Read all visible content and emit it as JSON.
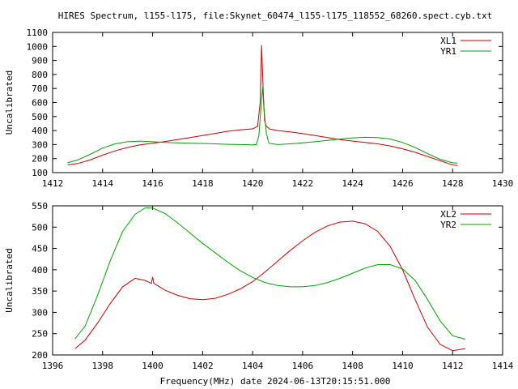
{
  "title": "HIRES Spectrum, l155-l175, file:Skynet_60474_l155-l175_118552_68260.spect.cyb.txt",
  "xlabel": "Frequency(MHz) date 2024-06-13T20:15:51.000",
  "colors": {
    "red": "#cc0000",
    "green": "#00a000"
  },
  "chart_data": [
    {
      "type": "line",
      "title": "HIRES Spectrum, l155-l175, file:Skynet_60474_l155-l175_118552_68260.spect.cyb.txt",
      "xlabel": "",
      "ylabel": "Uncalibrated",
      "xlim": [
        1412,
        1430
      ],
      "ylim": [
        100,
        1100
      ],
      "xticks": [
        1412,
        1414,
        1416,
        1418,
        1420,
        1422,
        1424,
        1426,
        1428,
        1430
      ],
      "yticks": [
        100,
        200,
        300,
        400,
        500,
        600,
        700,
        800,
        900,
        1000,
        1100
      ],
      "legend": "top-right",
      "series": [
        {
          "name": "XL1",
          "color": "#cc0000",
          "x": [
            1412.6,
            1413,
            1413.5,
            1414,
            1414.5,
            1415,
            1415.5,
            1416,
            1416.5,
            1417,
            1417.5,
            1418,
            1418.5,
            1419,
            1419.5,
            1420,
            1420.2,
            1420.3,
            1420.36,
            1420.42,
            1420.48,
            1420.55,
            1420.7,
            1421,
            1421.5,
            1422,
            1422.5,
            1423,
            1423.5,
            1424,
            1424.5,
            1425,
            1425.5,
            1426,
            1426.5,
            1427,
            1427.5,
            1428,
            1428.2
          ],
          "y": [
            155,
            165,
            190,
            225,
            255,
            280,
            298,
            310,
            322,
            335,
            350,
            365,
            380,
            395,
            405,
            412,
            430,
            600,
            1010,
            700,
            470,
            430,
            410,
            400,
            390,
            378,
            365,
            350,
            335,
            325,
            315,
            305,
            290,
            270,
            245,
            215,
            185,
            155,
            150
          ]
        },
        {
          "name": "YR1",
          "color": "#00a000",
          "x": [
            1412.6,
            1413,
            1413.5,
            1414,
            1414.5,
            1415,
            1415.5,
            1416,
            1416.5,
            1417,
            1417.5,
            1418,
            1418.5,
            1419,
            1419.5,
            1420,
            1420.15,
            1420.25,
            1420.35,
            1420.4,
            1420.45,
            1420.55,
            1420.65,
            1421,
            1421.5,
            1422,
            1422.5,
            1423,
            1423.5,
            1424,
            1424.5,
            1425,
            1425.5,
            1426,
            1426.5,
            1427,
            1427.5,
            1428,
            1428.2
          ],
          "y": [
            170,
            190,
            230,
            275,
            305,
            320,
            325,
            320,
            315,
            312,
            310,
            308,
            305,
            302,
            300,
            298,
            300,
            360,
            600,
            710,
            560,
            380,
            310,
            300,
            305,
            312,
            320,
            330,
            340,
            348,
            352,
            350,
            340,
            315,
            280,
            235,
            195,
            170,
            168
          ]
        }
      ]
    },
    {
      "type": "line",
      "title": "",
      "xlabel": "Frequency(MHz) date 2024-06-13T20:15:51.000",
      "ylabel": "Uncalibrated",
      "xlim": [
        1396,
        1414
      ],
      "ylim": [
        200,
        550
      ],
      "xticks": [
        1396,
        1398,
        1400,
        1402,
        1404,
        1406,
        1408,
        1410,
        1412,
        1414
      ],
      "yticks": [
        200,
        250,
        300,
        350,
        400,
        450,
        500,
        550
      ],
      "legend": "top-right",
      "series": [
        {
          "name": "XL2",
          "color": "#cc0000",
          "x": [
            1396.9,
            1397.3,
            1397.8,
            1398.3,
            1398.8,
            1399.3,
            1399.7,
            1399.95,
            1400.0,
            1400.05,
            1400.5,
            1401,
            1401.5,
            1402,
            1402.5,
            1403,
            1403.5,
            1404,
            1404.5,
            1405,
            1405.5,
            1406,
            1406.5,
            1407,
            1407.5,
            1408,
            1408.5,
            1409,
            1409.5,
            1410,
            1410.5,
            1411,
            1411.5,
            1412,
            1412.5
          ],
          "y": [
            215,
            235,
            275,
            320,
            360,
            380,
            375,
            368,
            383,
            368,
            352,
            340,
            332,
            330,
            333,
            342,
            355,
            372,
            395,
            420,
            445,
            468,
            488,
            503,
            512,
            514,
            508,
            490,
            455,
            400,
            330,
            265,
            225,
            210,
            215
          ]
        },
        {
          "name": "YR2",
          "color": "#00a000",
          "x": [
            1396.9,
            1397.3,
            1397.8,
            1398.3,
            1398.8,
            1399.3,
            1399.7,
            1400,
            1400.5,
            1401,
            1401.5,
            1402,
            1402.5,
            1403,
            1403.5,
            1404,
            1404.5,
            1405,
            1405.5,
            1406,
            1406.5,
            1407,
            1407.5,
            1408,
            1408.5,
            1409,
            1409.5,
            1410,
            1410.5,
            1411,
            1411.5,
            1412,
            1412.5
          ],
          "y": [
            238,
            268,
            340,
            420,
            490,
            530,
            545,
            545,
            532,
            510,
            486,
            462,
            440,
            418,
            398,
            382,
            370,
            363,
            360,
            360,
            363,
            370,
            380,
            392,
            404,
            412,
            412,
            402,
            375,
            330,
            280,
            245,
            237
          ]
        }
      ]
    }
  ]
}
